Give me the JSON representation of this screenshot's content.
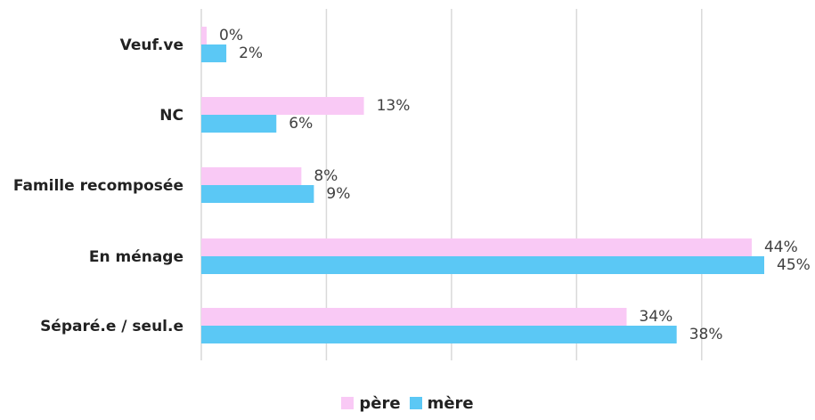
{
  "chart_data": {
    "type": "bar",
    "orientation": "horizontal",
    "categories": [
      "Veuf.ve",
      "NC",
      "Famille recomposée",
      "En ménage",
      "Séparé.e / seul.e"
    ],
    "series": [
      {
        "name": "père",
        "color": "#f9c9f5",
        "values": [
          0,
          13,
          8,
          44,
          34
        ],
        "labels": [
          "0%",
          "13%",
          "8%",
          "44%",
          "34%"
        ]
      },
      {
        "name": "mère",
        "color": "#5bc8f5",
        "values": [
          2,
          6,
          9,
          45,
          38
        ],
        "labels": [
          "2%",
          "6%",
          "9%",
          "45%",
          "38%"
        ]
      }
    ],
    "xlim": [
      0,
      45
    ],
    "grid": true,
    "legend_position": "bottom-center",
    "gridline_color": "#d9d9d9"
  }
}
